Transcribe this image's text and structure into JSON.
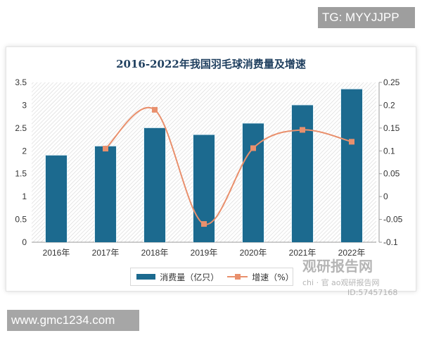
{
  "badges": {
    "top_right": "TG: MYYJJPP",
    "bottom_left": "www.gmc1234.com"
  },
  "watermark": {
    "brand": "观研报告网",
    "sub": "chi  ·  官  ao观研报告网",
    "id": "ID:57457168"
  },
  "legend": {
    "bar_label": "消费量（亿只）",
    "line_label": "增速（%）"
  },
  "colors": {
    "bar": "#1c6a8f",
    "line": "#e9906d",
    "title": "#1f3f5f"
  },
  "chart_data": {
    "type": "bar",
    "title": "2016-2022年我国羽毛球消费量及增速",
    "categories": [
      "2016年",
      "2017年",
      "2018年",
      "2019年",
      "2020年",
      "2021年",
      "2022年"
    ],
    "series": [
      {
        "name": "消费量（亿只）",
        "type": "bar",
        "axis": "left",
        "values": [
          1.9,
          2.1,
          2.5,
          2.35,
          2.6,
          3.0,
          3.35
        ]
      },
      {
        "name": "增速（%）",
        "type": "line",
        "axis": "right",
        "smooth": true,
        "values": [
          null,
          0.105,
          0.19,
          -0.06,
          0.106,
          0.146,
          0.12
        ]
      }
    ],
    "left_axis": {
      "ylim": [
        0,
        3.5
      ],
      "ticks": [
        "0",
        "0.5",
        "1",
        "1.5",
        "2",
        "2.5",
        "3",
        "3.5"
      ]
    },
    "right_axis": {
      "ylim": [
        -0.1,
        0.25
      ],
      "ticks": [
        "-0.1",
        "-0.05",
        "0",
        "0.05",
        "0.1",
        "0.15",
        "0.2",
        "0.25"
      ]
    },
    "xlabel": "",
    "ylabel": "",
    "legend_position": "bottom",
    "grid": false,
    "background": "diagonal hatch"
  }
}
